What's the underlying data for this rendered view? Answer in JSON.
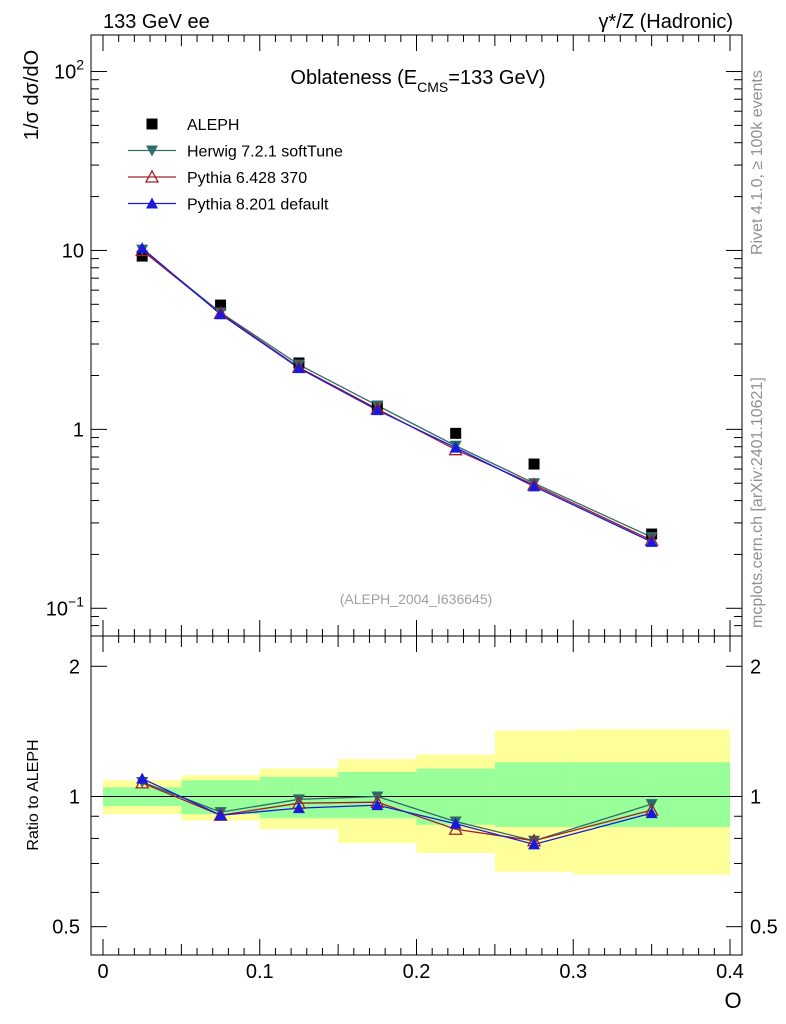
{
  "header": {
    "left": "133 GeV ee",
    "right": "γ*/Z (Hadronic)"
  },
  "side_labels": {
    "rivet": "Rivet 4.1.0, ≥ 100k events",
    "source": "mcplots.cern.ch [arXiv:2401.10621]"
  },
  "chart_data": {
    "type": "line",
    "title": "Oblateness (E_CMS=133 GeV)",
    "title_parts": {
      "pre": "Oblateness (E",
      "sub": "CMS",
      "post": "=133 GeV)"
    },
    "analysis_tag": "(ALEPH_2004_I636645)",
    "xlabel": "O",
    "ylabel": "1/σ  dσ/dO",
    "xlim": [
      0,
      0.4
    ],
    "x_ticks": [
      {
        "value": 0,
        "label": "0"
      },
      {
        "value": 0.1,
        "label": "0.1"
      },
      {
        "value": 0.2,
        "label": "0.2"
      },
      {
        "value": 0.3,
        "label": "0.3"
      },
      {
        "value": 0.4,
        "label": "0.4"
      }
    ],
    "y_scale": "log",
    "ylim": [
      0.07,
      160
    ],
    "y_ticks": [
      {
        "value": 0.1,
        "base": "10",
        "exp": "−1"
      },
      {
        "value": 1,
        "base": "1",
        "exp": ""
      },
      {
        "value": 10,
        "base": "10",
        "exp": ""
      },
      {
        "value": 100,
        "base": "10",
        "exp": "2"
      }
    ],
    "x": [
      0.025,
      0.075,
      0.125,
      0.175,
      0.225,
      0.275,
      0.35
    ],
    "bin_edges": [
      0,
      0.05,
      0.1,
      0.15,
      0.2,
      0.25,
      0.3,
      0.4
    ],
    "legend_position": "top-left",
    "series": [
      {
        "name": "ALEPH",
        "marker": "square",
        "color": "#000000",
        "values": [
          9.3,
          4.95,
          2.35,
          1.35,
          0.95,
          0.64,
          0.26
        ],
        "is_data": true
      },
      {
        "name": "Herwig 7.2.1 softTune",
        "marker": "triangle-down",
        "color": "#2e6b6b",
        "values": [
          10.1,
          4.5,
          2.3,
          1.36,
          0.81,
          0.5,
          0.25
        ]
      },
      {
        "name": "Pythia 6.428 370",
        "marker": "triangle-up-open",
        "color": "#a0202a",
        "values": [
          10.0,
          4.45,
          2.22,
          1.3,
          0.77,
          0.49,
          0.24
        ]
      },
      {
        "name": "Pythia 8.201 default",
        "marker": "triangle-up",
        "color": "#1a1adc",
        "values": [
          10.3,
          4.4,
          2.2,
          1.28,
          0.79,
          0.48,
          0.235
        ]
      }
    ],
    "ratio": {
      "ylabel": "Ratio to ALEPH",
      "y_scale": "log",
      "ylim": [
        0.43,
        2.35
      ],
      "y_ticks": [
        {
          "value": 0.5,
          "label": "0.5"
        },
        {
          "value": 1,
          "label": "1"
        },
        {
          "value": 2,
          "label": "2"
        }
      ],
      "band_inner": [
        [
          0.95,
          1.05
        ],
        [
          0.91,
          1.09
        ],
        [
          0.89,
          1.11
        ],
        [
          0.89,
          1.14
        ],
        [
          0.86,
          1.16
        ],
        [
          0.85,
          1.2
        ],
        [
          0.85,
          1.2
        ]
      ],
      "band_outer": [
        [
          0.91,
          1.09
        ],
        [
          0.88,
          1.12
        ],
        [
          0.84,
          1.16
        ],
        [
          0.78,
          1.22
        ],
        [
          0.74,
          1.25
        ],
        [
          0.67,
          1.42
        ],
        [
          0.66,
          1.43
        ]
      ],
      "series": [
        {
          "name": "Herwig 7.2.1 softTune",
          "values": [
            1.08,
            0.92,
            0.985,
            1.0,
            0.875,
            0.79,
            0.96
          ]
        },
        {
          "name": "Pythia 6.428 370",
          "values": [
            1.075,
            0.905,
            0.965,
            0.97,
            0.84,
            0.79,
            0.93
          ]
        },
        {
          "name": "Pythia 8.201 default",
          "values": [
            1.1,
            0.905,
            0.94,
            0.955,
            0.865,
            0.775,
            0.915
          ]
        }
      ]
    }
  }
}
